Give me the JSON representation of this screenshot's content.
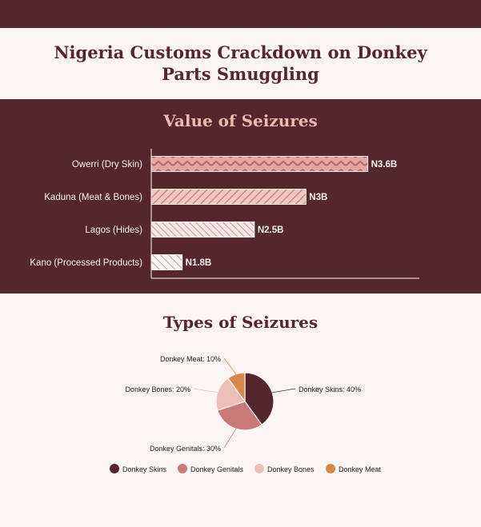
{
  "header": {
    "title": "Nigeria Customs Crackdown on Donkey Parts Smuggling"
  },
  "colors": {
    "dark": "#56262d",
    "pink_light": "#f0b9ad",
    "background": "#fdf5f3",
    "skins": "#56262d",
    "genitals": "#c97a78",
    "bones": "#ecc0b9",
    "meat": "#d9874b"
  },
  "chart_data": [
    {
      "type": "bar",
      "orientation": "horizontal",
      "title": "Value of Seizures",
      "categories": [
        "Owerri (Dry Skin)",
        "Kaduna (Meat & Bones)",
        "Lagos (Hides)",
        "Kano (Processed Products)"
      ],
      "values": [
        3.6,
        3.0,
        2.5,
        1.8
      ],
      "value_labels": [
        "N3.6B",
        "N3B",
        "N2.5B",
        "N1.8B"
      ],
      "xlim": [
        1.5,
        4.1
      ],
      "patterns": [
        "zigzag",
        "diagonal",
        "diagonal-reverse",
        "diagonal-sparse"
      ]
    },
    {
      "type": "pie",
      "title": "Types of Seizures",
      "slices": [
        {
          "name": "Donkey Skins",
          "value": 40,
          "label": "Donkey Skins: 40%"
        },
        {
          "name": "Donkey Genitals",
          "value": 30,
          "label": "Donkey Genitals: 30%"
        },
        {
          "name": "Donkey Bones",
          "value": 20,
          "label": "Donkey Bones: 20%"
        },
        {
          "name": "Donkey Meat",
          "value": 10,
          "label": "Donkey Meat: 10%"
        }
      ],
      "legend": [
        "Donkey Skins",
        "Donkey Genitals",
        "Donkey Bones",
        "Donkey Meat"
      ],
      "legend_position": "bottom"
    }
  ]
}
